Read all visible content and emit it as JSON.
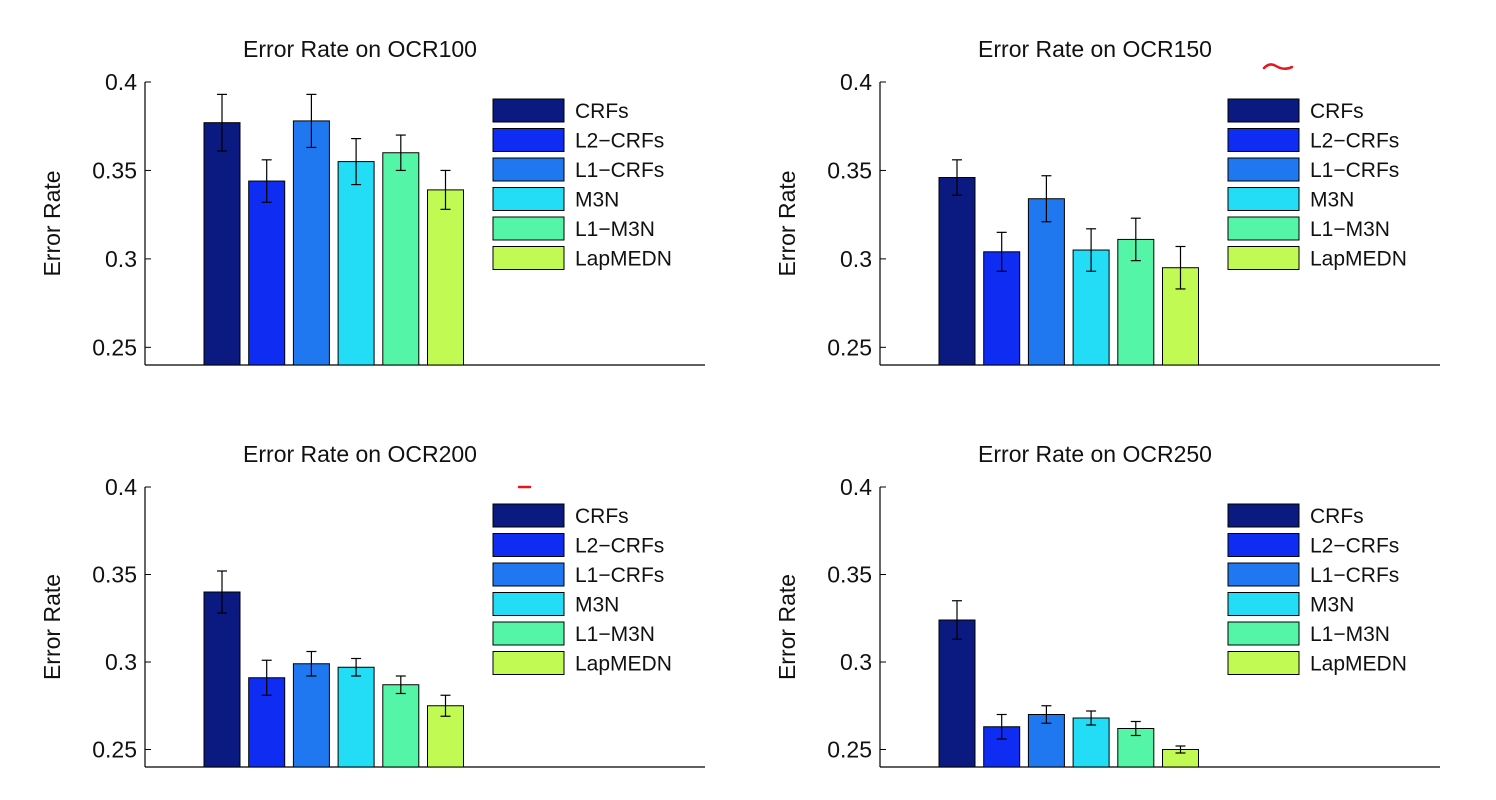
{
  "chart_data": [
    {
      "type": "bar",
      "title": "Error Rate on OCR100",
      "ylabel": "Error Rate",
      "ylim": [
        0.24,
        0.4
      ],
      "yticks": [
        "0.25",
        "0.3",
        "0.35",
        "0.4"
      ],
      "yticks_values": [
        0.25,
        0.3,
        0.35,
        0.4
      ],
      "legend_position": "top-right",
      "series": [
        {
          "name": "CRFs",
          "value": 0.377,
          "error": 0.016,
          "color": "#0a1a80"
        },
        {
          "name": "L2−CRFs",
          "value": 0.344,
          "error": 0.012,
          "color": "#0e2cf2"
        },
        {
          "name": "L1−CRFs",
          "value": 0.378,
          "error": 0.015,
          "color": "#1f78f0"
        },
        {
          "name": "M3N",
          "value": 0.355,
          "error": 0.013,
          "color": "#23dcf5"
        },
        {
          "name": "L1−M3N",
          "value": 0.36,
          "error": 0.01,
          "color": "#55f5a8"
        },
        {
          "name": "LapMEDN",
          "value": 0.339,
          "error": 0.011,
          "color": "#c0fa52"
        }
      ]
    },
    {
      "type": "bar",
      "title": "Error Rate on OCR150",
      "ylabel": "Error Rate",
      "ylim": [
        0.24,
        0.4
      ],
      "yticks": [
        "0.25",
        "0.3",
        "0.35",
        "0.4"
      ],
      "yticks_values": [
        0.25,
        0.3,
        0.35,
        0.4
      ],
      "legend_position": "top-right",
      "series": [
        {
          "name": "CRFs",
          "value": 0.346,
          "error": 0.01,
          "color": "#0a1a80"
        },
        {
          "name": "L2−CRFs",
          "value": 0.304,
          "error": 0.011,
          "color": "#0e2cf2"
        },
        {
          "name": "L1−CRFs",
          "value": 0.334,
          "error": 0.013,
          "color": "#1f78f0"
        },
        {
          "name": "M3N",
          "value": 0.305,
          "error": 0.012,
          "color": "#23dcf5"
        },
        {
          "name": "L1−M3N",
          "value": 0.311,
          "error": 0.012,
          "color": "#55f5a8"
        },
        {
          "name": "LapMEDN",
          "value": 0.295,
          "error": 0.012,
          "color": "#c0fa52"
        }
      ]
    },
    {
      "type": "bar",
      "title": "Error Rate on OCR200",
      "ylabel": "Error Rate",
      "ylim": [
        0.24,
        0.4
      ],
      "yticks": [
        "0.25",
        "0.3",
        "0.35",
        "0.4"
      ],
      "yticks_values": [
        0.25,
        0.3,
        0.35,
        0.4
      ],
      "legend_position": "top-right",
      "series": [
        {
          "name": "CRFs",
          "value": 0.34,
          "error": 0.012,
          "color": "#0a1a80"
        },
        {
          "name": "L2−CRFs",
          "value": 0.291,
          "error": 0.01,
          "color": "#0e2cf2"
        },
        {
          "name": "L1−CRFs",
          "value": 0.299,
          "error": 0.007,
          "color": "#1f78f0"
        },
        {
          "name": "M3N",
          "value": 0.297,
          "error": 0.005,
          "color": "#23dcf5"
        },
        {
          "name": "L1−M3N",
          "value": 0.287,
          "error": 0.005,
          "color": "#55f5a8"
        },
        {
          "name": "LapMEDN",
          "value": 0.275,
          "error": 0.006,
          "color": "#c0fa52"
        }
      ]
    },
    {
      "type": "bar",
      "title": "Error Rate on OCR250",
      "ylabel": "Error Rate",
      "ylim": [
        0.24,
        0.4
      ],
      "yticks": [
        "0.25",
        "0.3",
        "0.35",
        "0.4"
      ],
      "yticks_values": [
        0.25,
        0.3,
        0.35,
        0.4
      ],
      "legend_position": "top-right",
      "series": [
        {
          "name": "CRFs",
          "value": 0.324,
          "error": 0.011,
          "color": "#0a1a80"
        },
        {
          "name": "L2−CRFs",
          "value": 0.263,
          "error": 0.007,
          "color": "#0e2cf2"
        },
        {
          "name": "L1−CRFs",
          "value": 0.27,
          "error": 0.005,
          "color": "#1f78f0"
        },
        {
          "name": "M3N",
          "value": 0.268,
          "error": 0.004,
          "color": "#23dcf5"
        },
        {
          "name": "L1−M3N",
          "value": 0.262,
          "error": 0.004,
          "color": "#55f5a8"
        },
        {
          "name": "LapMEDN",
          "value": 0.25,
          "error": 0.002,
          "color": "#c0fa52"
        }
      ]
    }
  ],
  "annotations": {
    "marker_color": "#e8141e"
  }
}
